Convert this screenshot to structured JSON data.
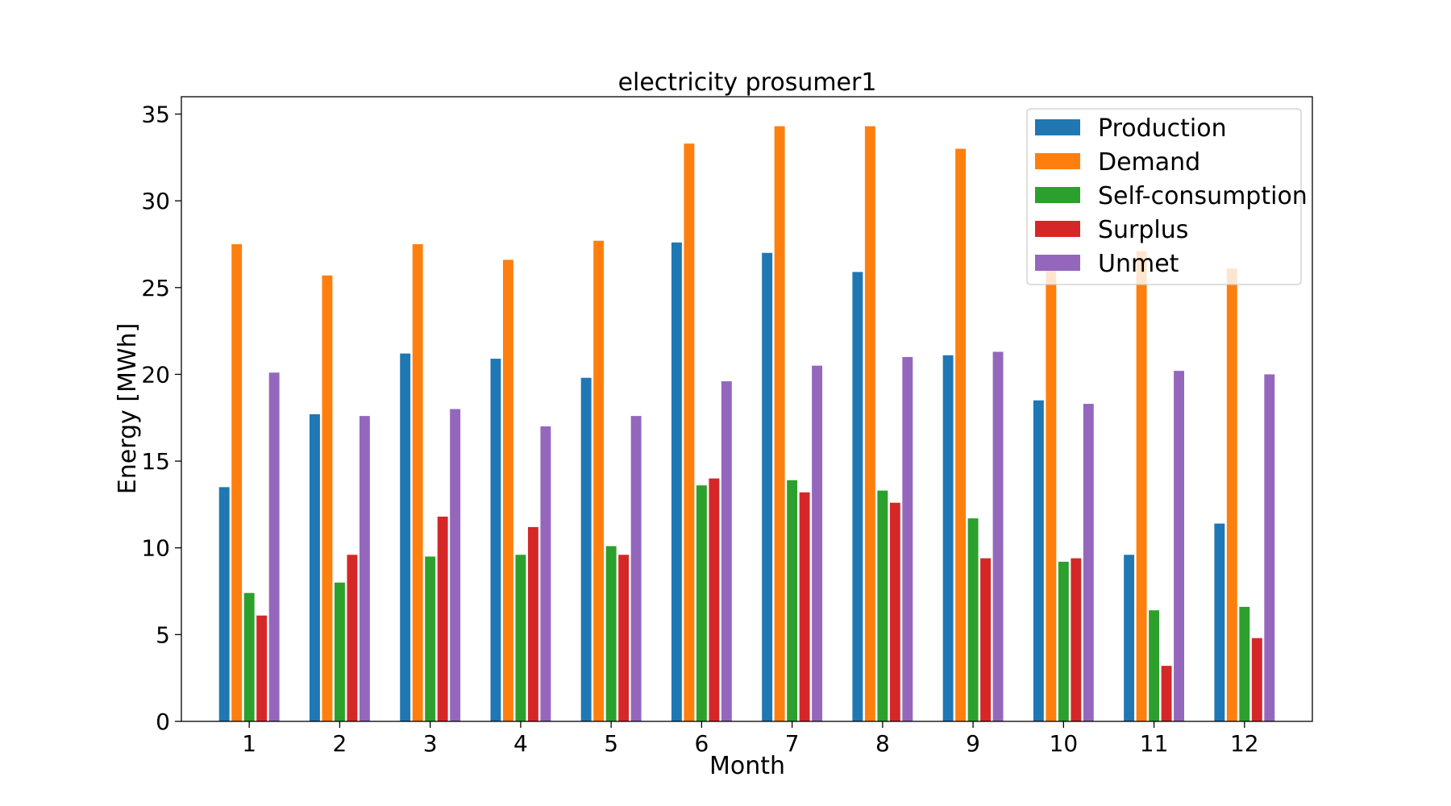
{
  "chart_data": {
    "type": "bar",
    "title": "electricity prosumer1",
    "xlabel": "Month",
    "ylabel": "Energy [MWh]",
    "ylim": [
      0,
      36
    ],
    "yticks": [
      0,
      5,
      10,
      15,
      20,
      25,
      30,
      35
    ],
    "categories": [
      "1",
      "2",
      "3",
      "4",
      "5",
      "6",
      "7",
      "8",
      "9",
      "10",
      "11",
      "12"
    ],
    "legend_position": "top-right",
    "grid": false,
    "series": [
      {
        "name": "Production",
        "color": "#1f77b4",
        "values": [
          13.5,
          17.7,
          21.2,
          20.9,
          19.8,
          27.6,
          27.0,
          25.9,
          21.1,
          18.5,
          9.6,
          11.4
        ]
      },
      {
        "name": "Demand",
        "color": "#ff7f0e",
        "values": [
          27.5,
          25.7,
          27.5,
          26.6,
          27.7,
          33.3,
          34.3,
          34.3,
          33.0,
          26.6,
          27.1,
          26.1
        ]
      },
      {
        "name": "Self-consumption",
        "color": "#2ca02c",
        "values": [
          7.4,
          8.0,
          9.5,
          9.6,
          10.1,
          13.6,
          13.9,
          13.3,
          11.7,
          9.2,
          6.4,
          6.6
        ]
      },
      {
        "name": "Surplus",
        "color": "#d62728",
        "values": [
          6.1,
          9.6,
          11.8,
          11.2,
          9.6,
          14.0,
          13.2,
          12.6,
          9.4,
          9.4,
          3.2,
          4.8
        ]
      },
      {
        "name": "Unmet",
        "color": "#9467bd",
        "values": [
          20.1,
          17.6,
          18.0,
          17.0,
          17.6,
          19.6,
          20.5,
          21.0,
          21.3,
          18.3,
          20.2,
          20.0
        ]
      }
    ]
  }
}
